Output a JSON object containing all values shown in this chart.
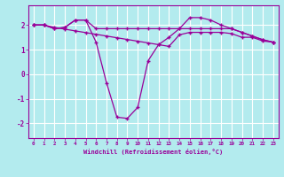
{
  "x": [
    0,
    1,
    2,
    3,
    4,
    5,
    6,
    7,
    8,
    9,
    10,
    11,
    12,
    13,
    14,
    15,
    16,
    17,
    18,
    19,
    20,
    21,
    22,
    23
  ],
  "y_flat": [
    2.0,
    2.0,
    1.85,
    1.9,
    2.2,
    2.2,
    1.85,
    1.85,
    1.85,
    1.85,
    1.85,
    1.85,
    1.85,
    1.85,
    1.85,
    1.85,
    1.85,
    1.85,
    1.85,
    1.85,
    1.7,
    1.55,
    1.4,
    1.3
  ],
  "y_dip": [
    2.0,
    2.0,
    1.85,
    1.9,
    2.2,
    2.2,
    1.3,
    -0.35,
    -1.75,
    -1.8,
    -1.35,
    0.55,
    1.2,
    1.5,
    1.85,
    2.3,
    2.3,
    2.2,
    2.0,
    1.85,
    1.7,
    1.55,
    1.4,
    1.3
  ],
  "y_diag": [
    2.0,
    2.0,
    1.9,
    1.83,
    1.76,
    1.69,
    1.62,
    1.55,
    1.48,
    1.41,
    1.34,
    1.27,
    1.2,
    1.13,
    1.6,
    1.7,
    1.7,
    1.7,
    1.7,
    1.65,
    1.5,
    1.5,
    1.35,
    1.3
  ],
  "color": "#990099",
  "bg_color": "#b3ebee",
  "grid_color": "#ffffff",
  "xlabel": "Windchill (Refroidissement éolien,°C)",
  "yticks": [
    -2,
    -1,
    0,
    1,
    2
  ],
  "xticks": [
    0,
    1,
    2,
    3,
    4,
    5,
    6,
    7,
    8,
    9,
    10,
    11,
    12,
    13,
    14,
    15,
    16,
    17,
    18,
    19,
    20,
    21,
    22,
    23
  ],
  "xlim": [
    -0.5,
    23.5
  ],
  "ylim": [
    -2.6,
    2.8
  ]
}
